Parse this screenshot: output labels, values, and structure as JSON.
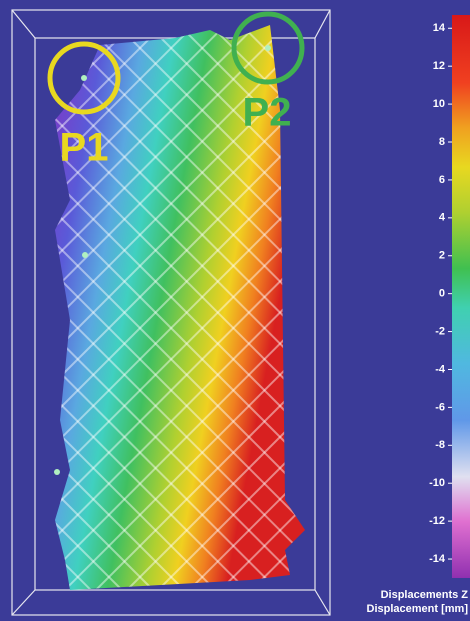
{
  "chart_data": {
    "type": "field",
    "annotations": [
      "P1",
      "P2"
    ],
    "colorbar_title": [
      "Displacements Z",
      "Displacement [mm]"
    ],
    "ylim": [
      -15,
      14.7
    ],
    "yticks": [
      14,
      12,
      10,
      8,
      6,
      4,
      2,
      0,
      -2,
      -4,
      -6,
      -8,
      -10,
      -12,
      -14
    ]
  }
}
